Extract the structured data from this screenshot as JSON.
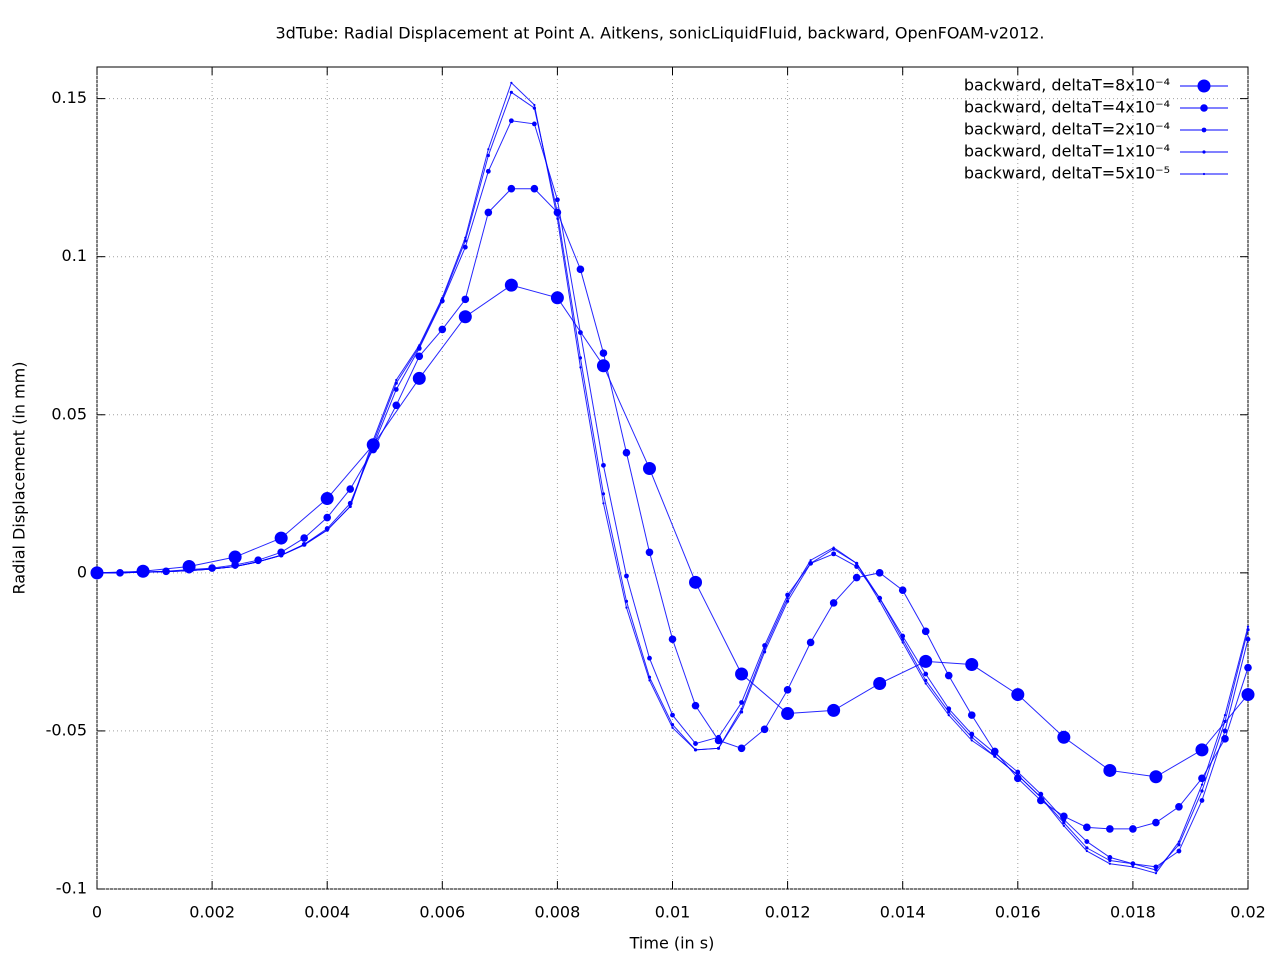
{
  "chart_data": {
    "type": "line",
    "title": "3dTube: Radial Displacement at Point A. Aitkens, sonicLiquidFluid, backward, OpenFOAM-v2012.",
    "x_label": "Time (in s)",
    "y_label": "Radial Displacement (in mm)",
    "xlim": [
      0,
      0.02
    ],
    "ylim": [
      -0.1,
      0.16
    ],
    "xticks": [
      0,
      0.002,
      0.004,
      0.006,
      0.008,
      0.01,
      0.012,
      0.014,
      0.016,
      0.018,
      0.02
    ],
    "yticks": [
      -0.1,
      -0.05,
      0,
      0.05,
      0.1,
      0.15
    ],
    "grid": true,
    "legend": "top-right",
    "series": [
      {
        "name": "backward, deltaT=8x10⁻⁴",
        "color": "#0000ff",
        "x": [
          0,
          0.0008,
          0.0016,
          0.0024,
          0.0032,
          0.004,
          0.0048,
          0.0056,
          0.0064,
          0.0072,
          0.008,
          0.0088,
          0.0096,
          0.0104,
          0.0112,
          0.012,
          0.0128,
          0.0136,
          0.0144,
          0.0152,
          0.016,
          0.0168,
          0.0176,
          0.0184,
          0.0192,
          0.02
        ],
        "values": [
          0,
          0.0005,
          0.002,
          0.005,
          0.011,
          0.0235,
          0.0405,
          0.0615,
          0.081,
          0.091,
          0.087,
          0.0655,
          0.033,
          -0.003,
          -0.032,
          -0.0445,
          -0.0435,
          -0.035,
          -0.028,
          -0.029,
          -0.0385,
          -0.052,
          -0.0625,
          -0.0645,
          -0.056,
          -0.0385
        ]
      },
      {
        "name": "backward, deltaT=4x10⁻⁴",
        "color": "#0000ff",
        "x": [
          0,
          0.0004,
          0.0008,
          0.0012,
          0.0016,
          0.002,
          0.0024,
          0.0028,
          0.0032,
          0.0036,
          0.004,
          0.0044,
          0.0048,
          0.0052,
          0.0056,
          0.006,
          0.0064,
          0.0068,
          0.0072,
          0.0076,
          0.008,
          0.0084,
          0.0088,
          0.0092,
          0.0096,
          0.01,
          0.0104,
          0.0108,
          0.0112,
          0.0116,
          0.012,
          0.0124,
          0.0128,
          0.0132,
          0.0136,
          0.014,
          0.0144,
          0.0148,
          0.0152,
          0.0156,
          0.016,
          0.0164,
          0.0168,
          0.0172,
          0.0176,
          0.018,
          0.0184,
          0.0188,
          0.0192,
          0.0196,
          0.02
        ],
        "values": [
          0,
          0,
          0.0003,
          0.0005,
          0.001,
          0.0015,
          0.0025,
          0.004,
          0.0065,
          0.011,
          0.0175,
          0.0265,
          0.039,
          0.053,
          0.0685,
          0.077,
          0.0865,
          0.114,
          0.1215,
          0.1215,
          0.114,
          0.096,
          0.0695,
          0.038,
          0.0065,
          -0.021,
          -0.042,
          -0.053,
          -0.0555,
          -0.0495,
          -0.037,
          -0.022,
          -0.0095,
          -0.0015,
          0,
          -0.0055,
          -0.0185,
          -0.0325,
          -0.045,
          -0.0565,
          -0.065,
          -0.072,
          -0.077,
          -0.0805,
          -0.081,
          -0.081,
          -0.079,
          -0.074,
          -0.065,
          -0.0525,
          -0.03
        ]
      },
      {
        "name": "backward, deltaT=2x10⁻⁴",
        "color": "#0000ff",
        "x": [
          0,
          0.0004,
          0.0008,
          0.0012,
          0.0016,
          0.002,
          0.0024,
          0.0028,
          0.0032,
          0.0036,
          0.004,
          0.0044,
          0.0048,
          0.0052,
          0.0056,
          0.006,
          0.0064,
          0.0068,
          0.0072,
          0.0076,
          0.008,
          0.0084,
          0.0088,
          0.0092,
          0.0096,
          0.01,
          0.0104,
          0.0108,
          0.0112,
          0.0116,
          0.012,
          0.0124,
          0.0128,
          0.0132,
          0.0136,
          0.014,
          0.0144,
          0.0148,
          0.0152,
          0.0156,
          0.016,
          0.0164,
          0.0168,
          0.0172,
          0.0176,
          0.018,
          0.0184,
          0.0188,
          0.0192,
          0.0196,
          0.02
        ],
        "values": [
          0,
          0,
          0.0002,
          0.0004,
          0.0007,
          0.0012,
          0.002,
          0.0035,
          0.0056,
          0.009,
          0.014,
          0.022,
          0.04,
          0.058,
          0.071,
          0.086,
          0.103,
          0.127,
          0.143,
          0.142,
          0.118,
          0.076,
          0.034,
          -0.001,
          -0.027,
          -0.045,
          -0.054,
          -0.052,
          -0.041,
          -0.023,
          -0.007,
          0.003,
          0.006,
          0.002,
          -0.008,
          -0.02,
          -0.032,
          -0.043,
          -0.051,
          -0.057,
          -0.063,
          -0.07,
          -0.078,
          -0.085,
          -0.09,
          -0.092,
          -0.093,
          -0.088,
          -0.072,
          -0.05,
          -0.021
        ]
      },
      {
        "name": "backward, deltaT=1x10⁻⁴",
        "color": "#0000ff",
        "x": [
          0,
          0.0004,
          0.0008,
          0.0012,
          0.0016,
          0.002,
          0.0024,
          0.0028,
          0.0032,
          0.0036,
          0.004,
          0.0044,
          0.0048,
          0.0052,
          0.0056,
          0.006,
          0.0064,
          0.0068,
          0.0072,
          0.0076,
          0.008,
          0.0084,
          0.0088,
          0.0092,
          0.0096,
          0.01,
          0.0104,
          0.0108,
          0.0112,
          0.0116,
          0.012,
          0.0124,
          0.0128,
          0.0132,
          0.0136,
          0.014,
          0.0144,
          0.0148,
          0.0152,
          0.0156,
          0.016,
          0.0164,
          0.0168,
          0.0172,
          0.0176,
          0.018,
          0.0184,
          0.0188,
          0.0192,
          0.0196,
          0.02
        ],
        "values": [
          0,
          0,
          0.0002,
          0.0004,
          0.0007,
          0.0012,
          0.002,
          0.0035,
          0.0055,
          0.0088,
          0.0135,
          0.021,
          0.041,
          0.06,
          0.0715,
          0.0865,
          0.105,
          0.132,
          0.152,
          0.147,
          0.114,
          0.068,
          0.025,
          -0.009,
          -0.033,
          -0.048,
          -0.056,
          -0.0555,
          -0.044,
          -0.025,
          -0.009,
          0.003,
          0.0075,
          0.003,
          -0.008,
          -0.021,
          -0.034,
          -0.044,
          -0.052,
          -0.058,
          -0.064,
          -0.071,
          -0.079,
          -0.087,
          -0.091,
          -0.092,
          -0.094,
          -0.086,
          -0.069,
          -0.047,
          -0.018
        ]
      },
      {
        "name": "backward, deltaT=5x10⁻⁵",
        "color": "#0000ff",
        "x": [
          0,
          0.0004,
          0.0008,
          0.0012,
          0.0016,
          0.002,
          0.0024,
          0.0028,
          0.0032,
          0.0036,
          0.004,
          0.0044,
          0.0048,
          0.0052,
          0.0056,
          0.006,
          0.0064,
          0.0068,
          0.0072,
          0.0076,
          0.008,
          0.0084,
          0.0088,
          0.0092,
          0.0096,
          0.01,
          0.0104,
          0.0108,
          0.0112,
          0.0116,
          0.012,
          0.0124,
          0.0128,
          0.0132,
          0.0136,
          0.014,
          0.0144,
          0.0148,
          0.0152,
          0.0156,
          0.016,
          0.0164,
          0.0168,
          0.0172,
          0.0176,
          0.018,
          0.0184,
          0.0188,
          0.0192,
          0.0196,
          0.02
        ],
        "values": [
          0,
          0,
          0.0002,
          0.0004,
          0.0007,
          0.0012,
          0.002,
          0.0035,
          0.0055,
          0.009,
          0.0135,
          0.021,
          0.042,
          0.061,
          0.072,
          0.087,
          0.106,
          0.134,
          0.155,
          0.148,
          0.112,
          0.065,
          0.022,
          -0.011,
          -0.034,
          -0.049,
          -0.056,
          -0.0555,
          -0.043,
          -0.024,
          -0.008,
          0.004,
          0.008,
          0.003,
          -0.009,
          -0.022,
          -0.035,
          -0.045,
          -0.053,
          -0.058,
          -0.064,
          -0.071,
          -0.08,
          -0.088,
          -0.092,
          -0.093,
          -0.095,
          -0.085,
          -0.067,
          -0.045,
          -0.017
        ]
      }
    ]
  }
}
